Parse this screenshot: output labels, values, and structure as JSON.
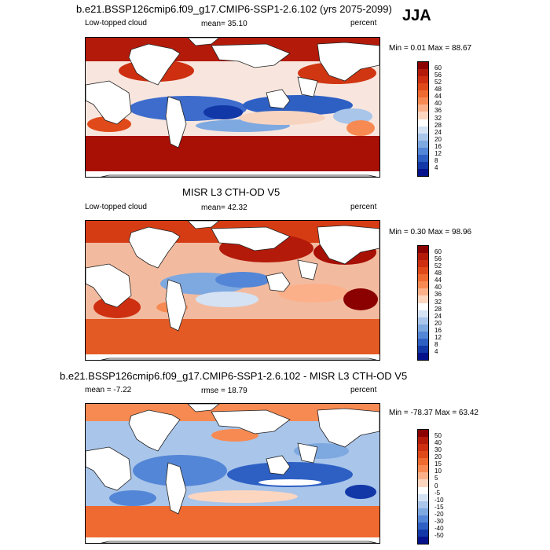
{
  "season": "JJA",
  "panels": [
    {
      "id": "model",
      "title": "b.e21.BSSP126cmip6.f09_g17.CMIP6-SSP1-2.6.102 (yrs 2075-2099)",
      "left_label": "Low-topped cloud",
      "center_label": "mean=  35.10",
      "right_label": "percent",
      "minmax": "Min =  0.01 Max =  88.67",
      "colorbar": {
        "ticks": [
          "60",
          "56",
          "52",
          "48",
          "44",
          "40",
          "36",
          "32",
          "28",
          "24",
          "20",
          "16",
          "12",
          "8",
          "4"
        ],
        "colors": [
          "#8b0000",
          "#b41a0a",
          "#cd2f10",
          "#e04a1a",
          "#ee6a30",
          "#f78a52",
          "#fcb08a",
          "#fdd6c0",
          "#ffffff",
          "#d4e2f4",
          "#a9c5ea",
          "#7ea8e0",
          "#5386d6",
          "#2e60c4",
          "#1238a8",
          "#05128c"
        ]
      }
    },
    {
      "id": "obs",
      "title": "MISR L3 CTH-OD V5",
      "left_label": "Low-topped cloud",
      "center_label": "mean=  42.32",
      "right_label": "percent",
      "minmax": "Min =  0.30 Max =  98.96",
      "colorbar": {
        "ticks": [
          "60",
          "56",
          "52",
          "48",
          "44",
          "40",
          "36",
          "32",
          "28",
          "24",
          "20",
          "16",
          "12",
          "8",
          "4"
        ],
        "colors": [
          "#8b0000",
          "#b41a0a",
          "#cd2f10",
          "#e04a1a",
          "#ee6a30",
          "#f78a52",
          "#fcb08a",
          "#fdd6c0",
          "#ffffff",
          "#d4e2f4",
          "#a9c5ea",
          "#7ea8e0",
          "#5386d6",
          "#2e60c4",
          "#1238a8",
          "#05128c"
        ]
      }
    },
    {
      "id": "diff",
      "title": "b.e21.BSSP126cmip6.f09_g17.CMIP6-SSP1-2.6.102 - MISR L3 CTH-OD V5",
      "left_label": "mean =  -7.22",
      "center_label": "rmse =  18.79",
      "right_label": "percent",
      "minmax": "Min = -78.37 Max =  63.42",
      "colorbar": {
        "ticks": [
          "50",
          "40",
          "30",
          "20",
          "15",
          "10",
          "5",
          "0",
          "-5",
          "-10",
          "-15",
          "-20",
          "-30",
          "-40",
          "-50"
        ],
        "colors": [
          "#8b0000",
          "#b41a0a",
          "#cd2f10",
          "#e04a1a",
          "#ee6a30",
          "#f78a52",
          "#fcb08a",
          "#fdd6c0",
          "#ffffff",
          "#d4e2f4",
          "#a9c5ea",
          "#7ea8e0",
          "#5386d6",
          "#2e60c4",
          "#1238a8",
          "#05128c"
        ]
      }
    }
  ],
  "chart_data": [
    {
      "type": "heatmap",
      "title": "b.e21.BSSP126cmip6.f09_g17.CMIP6-SSP1-2.6.102 (yrs 2075-2099)",
      "variable": "Low-topped cloud",
      "units": "percent",
      "mean": 35.1,
      "min": 0.01,
      "max": 88.67,
      "contour_levels": [
        4,
        8,
        12,
        16,
        20,
        24,
        28,
        32,
        36,
        40,
        44,
        48,
        52,
        56,
        60
      ]
    },
    {
      "type": "heatmap",
      "title": "MISR L3 CTH-OD V5",
      "variable": "Low-topped cloud",
      "units": "percent",
      "mean": 42.32,
      "min": 0.3,
      "max": 98.96,
      "contour_levels": [
        4,
        8,
        12,
        16,
        20,
        24,
        28,
        32,
        36,
        40,
        44,
        48,
        52,
        56,
        60
      ]
    },
    {
      "type": "heatmap",
      "title": "b.e21.BSSP126cmip6.f09_g17.CMIP6-SSP1-2.6.102 - MISR L3 CTH-OD V5",
      "units": "percent",
      "mean": -7.22,
      "rmse": 18.79,
      "min": -78.37,
      "max": 63.42,
      "contour_levels": [
        -50,
        -40,
        -30,
        -20,
        -15,
        -10,
        -5,
        0,
        5,
        10,
        15,
        20,
        30,
        40,
        50
      ]
    }
  ]
}
